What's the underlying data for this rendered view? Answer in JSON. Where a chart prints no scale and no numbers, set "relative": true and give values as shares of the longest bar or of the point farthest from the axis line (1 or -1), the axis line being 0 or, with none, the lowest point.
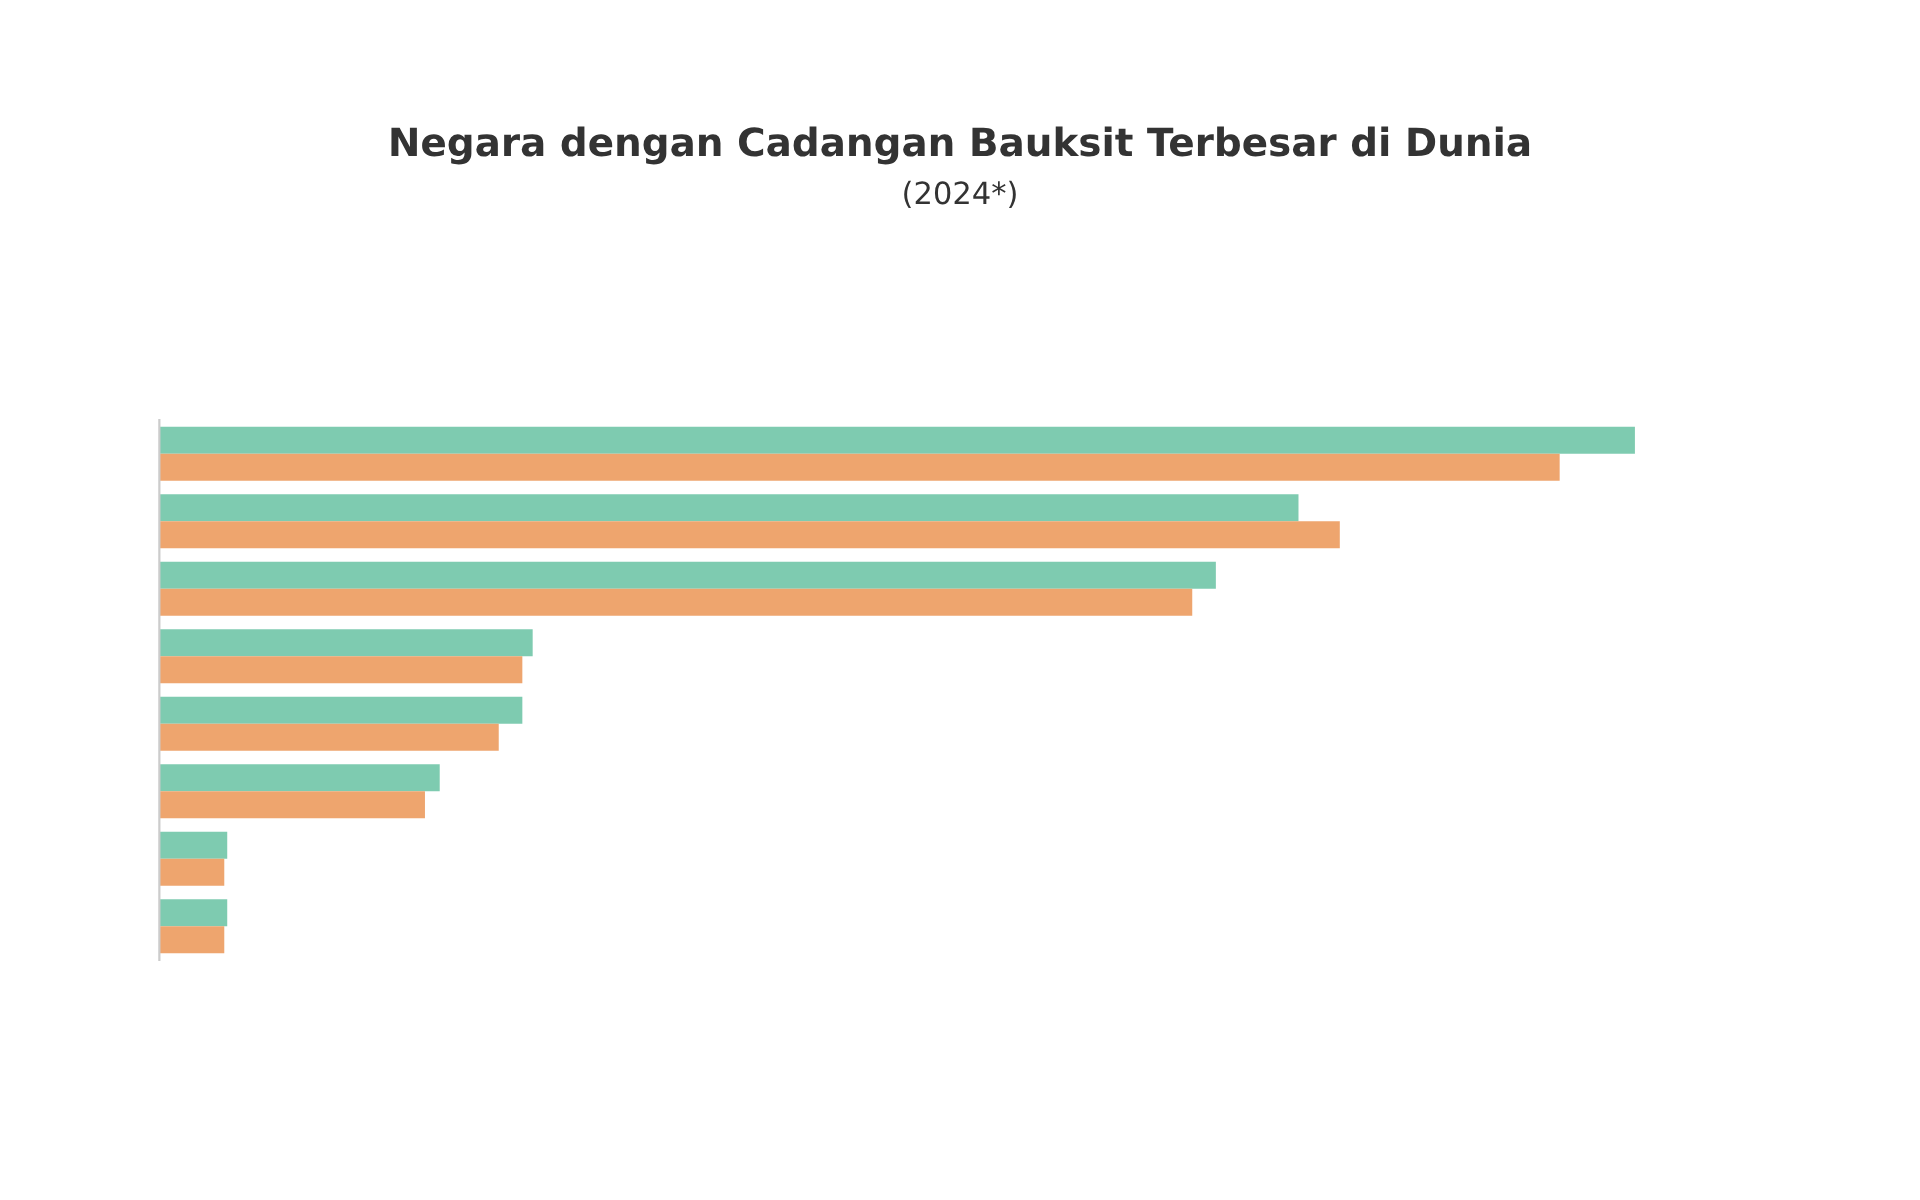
{
  "chart_data": {
    "type": "bar",
    "orientation": "horizontal",
    "relative": true,
    "title": "Negara dengan Cadangan Bauksit Terbesar di Dunia",
    "subtitle": "(2024*)",
    "categories": [
      null,
      null,
      null,
      null,
      null,
      null,
      null,
      null
    ],
    "series": [
      {
        "color": "#7ecbb0",
        "values": [
          1,
          0.772,
          0.716,
          0.253,
          0.246,
          0.19,
          0.046,
          0.046
        ]
      },
      {
        "color": "#eea56e",
        "values": [
          0.949,
          0.8,
          0.7,
          0.246,
          0.23,
          0.18,
          0.044,
          0.044
        ]
      }
    ]
  }
}
